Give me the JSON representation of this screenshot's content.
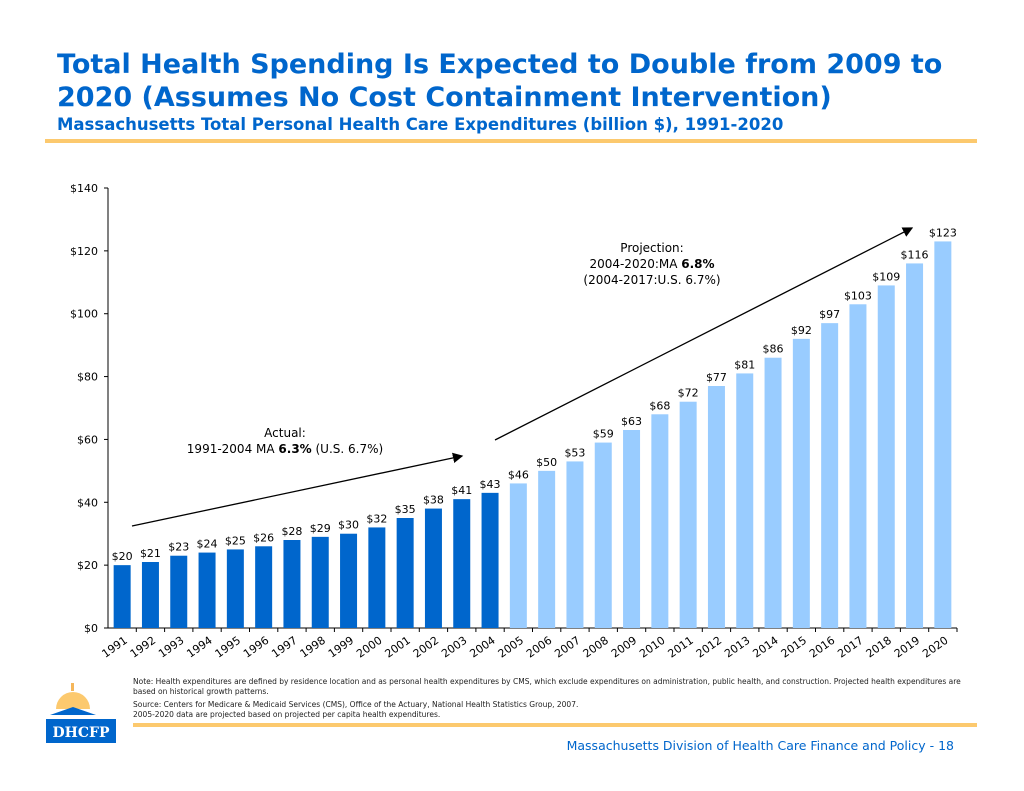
{
  "header": {
    "title": "Total Health Spending Is Expected to Double from 2009 to 2020 (Assumes No Cost Containment Intervention)",
    "subtitle": "Massachusetts Total Personal Health Care Expenditures (billion $), 1991-2020"
  },
  "chart_data": {
    "type": "bar",
    "categories": [
      "1991",
      "1992",
      "1993",
      "1994",
      "1995",
      "1996",
      "1997",
      "1998",
      "1999",
      "2000",
      "2001",
      "2002",
      "2003",
      "2004",
      "2005",
      "2006",
      "2007",
      "2008",
      "2009",
      "2010",
      "2011",
      "2012",
      "2013",
      "2014",
      "2015",
      "2016",
      "2017",
      "2018",
      "2019",
      "2020"
    ],
    "values": [
      20,
      21,
      23,
      24,
      25,
      26,
      28,
      29,
      30,
      32,
      35,
      38,
      41,
      43,
      46,
      50,
      53,
      59,
      63,
      68,
      72,
      77,
      81,
      86,
      92,
      97,
      103,
      109,
      116,
      123
    ],
    "data_labels": [
      "$20",
      "$21",
      "$23",
      "$24",
      "$25",
      "$26",
      "$28",
      "$29",
      "$30",
      "$32",
      "$35",
      "$38",
      "$41",
      "$43",
      "$46",
      "$50",
      "$53",
      "$59",
      "$63",
      "$68",
      "$72",
      "$77",
      "$81",
      "$86",
      "$92",
      "$97",
      "$103",
      "$109",
      "$116",
      "$123"
    ],
    "ylim": [
      0,
      140
    ],
    "yticks": [
      "$0",
      "$20",
      "$40",
      "$60",
      "$80",
      "$100",
      "$120",
      "$140"
    ],
    "colors": {
      "actual": "#0066cc",
      "projected": "#99ccff"
    },
    "annotations": {
      "actual": {
        "line1": "Actual:",
        "line2_pre": "1991-2004 MA ",
        "line2_bold": "6.3%",
        "line2_post": " (U.S. 6.7%)"
      },
      "projection": {
        "line1": "Projection:",
        "line2_pre": "2004-2020:MA ",
        "line2_bold": "6.8%",
        "line3": "(2004-2017:U.S. 6.7%)"
      }
    }
  },
  "notes": {
    "note": "Note: Health expenditures are defined by residence location and as personal health expenditures by CMS, which exclude expenditures on administration, public health, and construction. Projected health expenditures are based on historical growth patterns.",
    "source1": "Source: Centers for Medicare & Medicaid Services (CMS), Office of the Actuary, National Health Statistics Group, 2007.",
    "source2": "2005-2020 data are projected based on projected per capita health expenditures."
  },
  "footer": "Massachusetts Division of Health Care Finance and Policy - 18",
  "logo": "DHCFP"
}
